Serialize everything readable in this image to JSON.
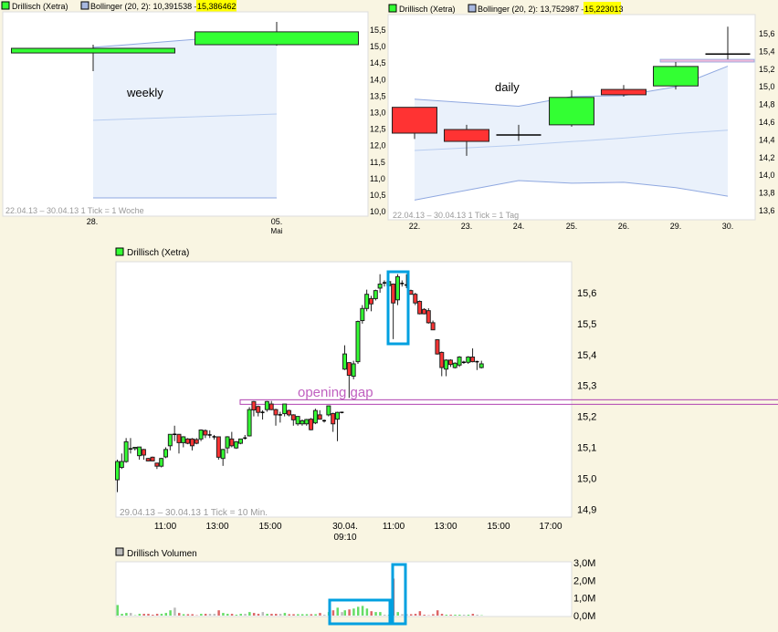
{
  "colors": {
    "up": "#33ff33",
    "down": "#ff3333",
    "vol_up": "#66dd66",
    "vol_down": "#dd6666",
    "vol_flat": "#bbbbbb",
    "band_fill": "#eaf1fb",
    "band_line": "#8fa8e0",
    "highlight": "#ffff00",
    "annotation": "#b040b0",
    "box": "#00a0e0"
  },
  "weekly": {
    "legend_series": "Drillisch (Xetra)",
    "legend_bollinger": "Bollinger (20, 2): 10,391538 –",
    "legend_bollinger_upper": "15,386462",
    "annotation": "weekly",
    "footer": "22.04.13 – 30.04.13   1 Tick = 1 Woche",
    "x_ticks": [
      "28.",
      "05."
    ],
    "x_sub": "Mai",
    "y_ticks": [
      "15,5",
      "15,0",
      "14,5",
      "14,0",
      "13,5",
      "13,0",
      "12,5",
      "12,0",
      "11,5",
      "11,0",
      "10,5",
      "10,0"
    ],
    "ylim": [
      10.0,
      15.5
    ],
    "candles": [
      [
        14.78,
        15.03,
        14.23,
        14.92
      ],
      [
        15.03,
        15.72,
        15.0,
        15.42
      ]
    ],
    "bollinger": {
      "upper": [
        14.95,
        15.386
      ],
      "middle": [
        12.74,
        12.93
      ],
      "lower": [
        10.39,
        10.39
      ]
    }
  },
  "daily": {
    "legend_series": "Drillisch (Xetra)",
    "legend_bollinger": "Bollinger (20, 2): 13,752987 –",
    "legend_bollinger_upper": "15,223013",
    "annotation": "daily",
    "footer": "22.04.13 – 30.04.13   1 Tick = 1 Tag",
    "x_ticks": [
      "22.",
      "23.",
      "24.",
      "25.",
      "26.",
      "29.",
      "30."
    ],
    "y_ticks": [
      "15,6",
      "15,4",
      "15,2",
      "15,0",
      "14,8",
      "14,6",
      "14,4",
      "14,2",
      "14,0",
      "13,8",
      "13,6"
    ],
    "ylim": [
      13.6,
      15.6
    ],
    "candles": [
      [
        14.758,
        14.76,
        14.4,
        14.466
      ],
      [
        14.507,
        14.56,
        14.21,
        14.373
      ],
      [
        14.445,
        14.56,
        14.38,
        14.445
      ],
      [
        14.56,
        14.95,
        14.54,
        14.87
      ],
      [
        14.96,
        15.01,
        14.88,
        14.9
      ],
      [
        15.0,
        15.27,
        14.96,
        15.22
      ],
      [
        15.36,
        15.67,
        15.3,
        15.36
      ]
    ],
    "bollinger": {
      "upper": [
        14.85,
        14.81,
        14.77,
        14.88,
        14.89,
        14.99,
        15.223
      ],
      "middle": [
        14.27,
        14.3,
        14.33,
        14.37,
        14.41,
        14.46,
        14.5
      ],
      "lower": [
        13.71,
        13.82,
        13.93,
        13.9,
        13.91,
        13.85,
        13.753
      ]
    },
    "gap_level": 15.28
  },
  "intraday": {
    "legend_series": "Drillisch (Xetra)",
    "annotation": "opening gap",
    "gap_level": 15.245,
    "footer": "29.04.13 – 30.04.13   1 Tick = 10 Min.",
    "x_ticks": [
      "11:00",
      "13:00",
      "15:00",
      "30.04.",
      "11:00",
      "13:00",
      "15:00",
      "17:00"
    ],
    "x_sub": "09:10",
    "y_ticks": [
      "15,6",
      "15,5",
      "15,4",
      "15,3",
      "15,2",
      "15,1",
      "15,0",
      "14,9"
    ],
    "ylim": [
      14.9,
      15.6
    ],
    "day1": [
      [
        14.995,
        15.06,
        14.955,
        15.054
      ],
      [
        15.035,
        15.08,
        15.03,
        15.054
      ],
      [
        15.054,
        15.13,
        15.05,
        15.118
      ],
      [
        15.095,
        15.13,
        15.08,
        15.095
      ],
      [
        15.096,
        15.1,
        15.09,
        15.1
      ],
      [
        15.073,
        15.1,
        15.06,
        15.101
      ],
      [
        15.093,
        15.095,
        15.06,
        15.075
      ],
      [
        15.064,
        15.066,
        15.055,
        15.056
      ],
      [
        15.068,
        15.07,
        15.055,
        15.056
      ],
      [
        15.049,
        15.05,
        15.03,
        15.039
      ],
      [
        15.039,
        15.066,
        15.035,
        15.064
      ],
      [
        15.069,
        15.1,
        15.065,
        15.093
      ],
      [
        15.105,
        15.142,
        15.09,
        15.142
      ],
      [
        15.142,
        15.17,
        15.12,
        15.142
      ],
      [
        15.142,
        15.143,
        15.08,
        15.115
      ],
      [
        15.115,
        15.136,
        15.1,
        15.134
      ],
      [
        15.127,
        15.13,
        15.11,
        15.113
      ],
      [
        15.127,
        15.13,
        15.09,
        15.105
      ],
      [
        15.125,
        15.13,
        15.11,
        15.113
      ],
      [
        15.127,
        15.158,
        15.12,
        15.156
      ],
      [
        15.154,
        15.158,
        15.13,
        15.14
      ],
      [
        15.14,
        15.155,
        15.13,
        15.14
      ],
      [
        15.134,
        15.14,
        15.125,
        15.134
      ],
      [
        15.134,
        15.135,
        15.06,
        15.068
      ],
      [
        15.064,
        15.095,
        15.04,
        15.093
      ],
      [
        15.098,
        15.136,
        15.08,
        15.134
      ],
      [
        15.127,
        15.15,
        15.1,
        15.105
      ],
      [
        15.098,
        15.12,
        15.095,
        15.118
      ],
      [
        15.113,
        15.128,
        15.11,
        15.127
      ],
      [
        15.13,
        15.14,
        15.125,
        15.13
      ],
      [
        15.137,
        15.23,
        15.135,
        15.222
      ],
      [
        15.248,
        15.25,
        15.2,
        15.221
      ],
      [
        15.232,
        15.235,
        15.2,
        15.213
      ],
      [
        15.213,
        15.22,
        15.19,
        15.213
      ],
      [
        15.222,
        15.25,
        15.215,
        15.248
      ],
      [
        15.24,
        15.25,
        15.22,
        15.222
      ],
      [
        15.222,
        15.225,
        15.17,
        15.205
      ],
      [
        15.205,
        15.215,
        15.18,
        15.205
      ],
      [
        15.209,
        15.24,
        15.2,
        15.24
      ],
      [
        15.219,
        15.222,
        15.2,
        15.205
      ],
      [
        15.205,
        15.207,
        15.17,
        15.189
      ],
      [
        15.176,
        15.2,
        15.17,
        15.2
      ],
      [
        15.176,
        15.19,
        15.17,
        15.186
      ],
      [
        15.176,
        15.192,
        15.17,
        15.19
      ],
      [
        15.191,
        15.195,
        15.155,
        15.157
      ],
      [
        15.179,
        15.225,
        15.175,
        15.219
      ],
      [
        15.205,
        15.22,
        15.19,
        15.191
      ],
      [
        15.186,
        15.19,
        15.18,
        15.186
      ],
      [
        15.205,
        15.235,
        15.2,
        15.234
      ],
      [
        15.209,
        15.212,
        15.15,
        15.176
      ],
      [
        15.191,
        15.215,
        15.12,
        15.213
      ],
      [
        15.213,
        15.215,
        15.21,
        15.213
      ]
    ],
    "day2": [
      [
        15.353,
        15.43,
        15.35,
        15.402
      ],
      [
        15.374,
        15.375,
        15.26,
        15.333
      ],
      [
        15.33,
        15.38,
        15.32,
        15.37
      ],
      [
        15.377,
        15.51,
        15.37,
        15.507
      ],
      [
        15.51,
        15.56,
        15.5,
        15.549
      ],
      [
        15.549,
        15.61,
        15.54,
        15.595
      ],
      [
        15.581,
        15.59,
        15.54,
        15.564
      ],
      [
        15.581,
        15.61,
        15.575,
        15.607
      ],
      [
        15.615,
        15.66,
        15.6,
        15.628
      ],
      [
        15.632,
        15.64,
        15.62,
        15.632
      ],
      [
        15.623,
        15.64,
        15.62,
        15.636
      ],
      [
        15.628,
        15.63,
        15.45,
        15.567
      ],
      [
        15.577,
        15.66,
        15.56,
        15.652
      ],
      [
        15.63,
        15.64,
        15.62,
        15.63
      ],
      [
        15.625,
        15.66,
        15.615,
        15.625
      ],
      [
        15.607,
        15.61,
        15.595,
        15.595
      ],
      [
        15.595,
        15.6,
        15.56,
        15.567
      ],
      [
        15.572,
        15.575,
        15.53,
        15.532
      ],
      [
        15.546,
        15.55,
        15.53,
        15.532
      ],
      [
        15.542,
        15.55,
        15.5,
        15.503
      ],
      [
        15.503,
        15.51,
        15.48,
        15.48
      ],
      [
        15.448,
        15.45,
        15.4,
        15.402
      ],
      [
        15.407,
        15.41,
        15.33,
        15.358
      ],
      [
        15.353,
        15.385,
        15.33,
        15.382
      ],
      [
        15.382,
        15.385,
        15.36,
        15.368
      ],
      [
        15.358,
        15.375,
        15.355,
        15.372
      ],
      [
        15.366,
        15.395,
        15.36,
        15.392
      ],
      [
        15.375,
        15.38,
        15.37,
        15.375
      ],
      [
        15.375,
        15.395,
        15.37,
        15.392
      ],
      [
        15.392,
        15.42,
        15.375,
        15.377
      ],
      [
        15.377,
        15.38,
        15.35,
        15.377
      ],
      [
        15.358,
        15.38,
        15.355,
        15.37
      ]
    ]
  },
  "volume": {
    "legend": "Drillisch Volumen",
    "unit": "M",
    "y_ticks": [
      "3,0M",
      "2,0M",
      "1,0M",
      "0,0M"
    ],
    "ylim": [
      0,
      3.0
    ],
    "day1": [
      0.6,
      0.1,
      0.15,
      0.15,
      0.02,
      0.1,
      0.1,
      0.1,
      0.05,
      0.1,
      0.1,
      0.15,
      0.3,
      0.45,
      0.15,
      0.08,
      0.08,
      0.08,
      0.02,
      0.1,
      0.1,
      0.1,
      0.1,
      0.3,
      0.15,
      0.1,
      0.1,
      0.05,
      0.1,
      0.1,
      0.2,
      0.15,
      0.1,
      0.2,
      0.1,
      0.1,
      0.1,
      0.1,
      0.15,
      0.08,
      0.08,
      0.08,
      0.08,
      0.08,
      0.08,
      0.08,
      0.15,
      0.05,
      0.2,
      0.3,
      0.45,
      0.2
    ],
    "day2": [
      0.3,
      0.35,
      0.4,
      0.5,
      0.55,
      0.4,
      0.25,
      0.2,
      0.2,
      0.05,
      0.05,
      2.1,
      0.2,
      0.08,
      0.08,
      0.08,
      0.1,
      0.25,
      0.05,
      0.02,
      0.08,
      0.3,
      0.1,
      0.05,
      0.05,
      0.05,
      0.05,
      0.05,
      0.05,
      0.1,
      0.05,
      0.02
    ]
  }
}
